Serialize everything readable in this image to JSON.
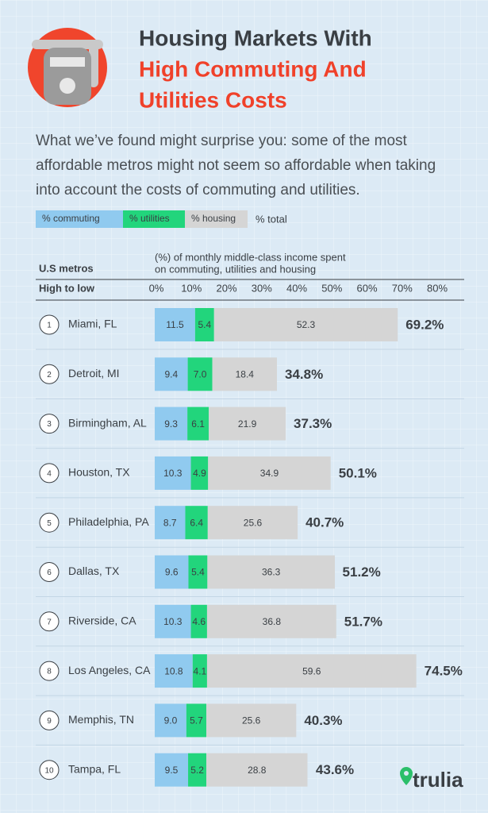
{
  "chart_data": {
    "type": "stacked-bar-horizontal",
    "title_lines": [
      "Housing Markets With",
      "High Commuting And",
      "Utilities Costs"
    ],
    "subtitle": "What we’ve found might surprise you: some of the most affordable metros might not seem so affordable when taking into account the costs of commuting and utilities.",
    "category_header": "U.S metros",
    "order_label": "High to low",
    "x_label": [
      "(%) of monthly middle-class income spent",
      "on commuting, utilities and housing"
    ],
    "ranks": [
      1,
      2,
      3,
      4,
      5,
      6,
      7,
      8,
      9,
      10
    ],
    "categories": [
      "Miami, FL",
      "Detroit, MI",
      "Birmingham, AL",
      "Houston, TX",
      "Philadelphia, PA",
      "Dallas, TX",
      "Riverside, CA",
      "Los Angeles, CA",
      "Memphis, TN",
      "Tampa, FL"
    ],
    "series": [
      {
        "name": "% commuting",
        "color": "#90caef",
        "values": [
          11.5,
          9.4,
          9.3,
          10.3,
          8.7,
          9.6,
          10.3,
          10.8,
          9.0,
          9.5
        ],
        "value_labels": [
          "11.5",
          "9.4",
          "9.3",
          "10.3",
          "8.7",
          "9.6",
          "10.3",
          "10.8",
          "9.0",
          "9.5"
        ]
      },
      {
        "name": "% utilities",
        "color": "#22d57c",
        "values": [
          5.4,
          7.0,
          6.1,
          4.9,
          6.4,
          5.4,
          4.6,
          4.1,
          5.7,
          5.2
        ],
        "value_labels": [
          "5.4",
          "7.0",
          "6.1",
          "4.9",
          "6.4",
          "5.4",
          "4.6",
          "4.1",
          "5.7",
          "5.2"
        ]
      },
      {
        "name": "% housing",
        "color": "#d5d5d5",
        "values": [
          52.3,
          18.4,
          21.9,
          34.9,
          25.6,
          36.3,
          36.8,
          59.6,
          25.6,
          28.8
        ],
        "value_labels": [
          "52.3",
          "18.4",
          "21.9",
          "34.9",
          "25.6",
          "36.3",
          "36.8",
          "59.6",
          "25.6",
          "28.8"
        ]
      }
    ],
    "total_name": "% total",
    "totals": [
      69.2,
      34.8,
      37.3,
      50.1,
      40.7,
      51.2,
      51.7,
      74.5,
      40.3,
      43.6
    ],
    "total_labels": [
      "69.2%",
      "34.8%",
      "37.3%",
      "50.1%",
      "40.7%",
      "51.2%",
      "51.7%",
      "74.5%",
      "40.3%",
      "43.6%"
    ],
    "xlim": [
      0,
      80
    ],
    "xticks": [
      {
        "value": 0,
        "label": "0%"
      },
      {
        "value": 10,
        "label": "10%"
      },
      {
        "value": 20,
        "label": "20%"
      },
      {
        "value": 30,
        "label": "30%"
      },
      {
        "value": 40,
        "label": "40%"
      },
      {
        "value": 50,
        "label": "50%"
      },
      {
        "value": 60,
        "label": "60%"
      },
      {
        "value": 70,
        "label": "70%"
      },
      {
        "value": 80,
        "label": "80%"
      }
    ],
    "logo": "trulia"
  }
}
